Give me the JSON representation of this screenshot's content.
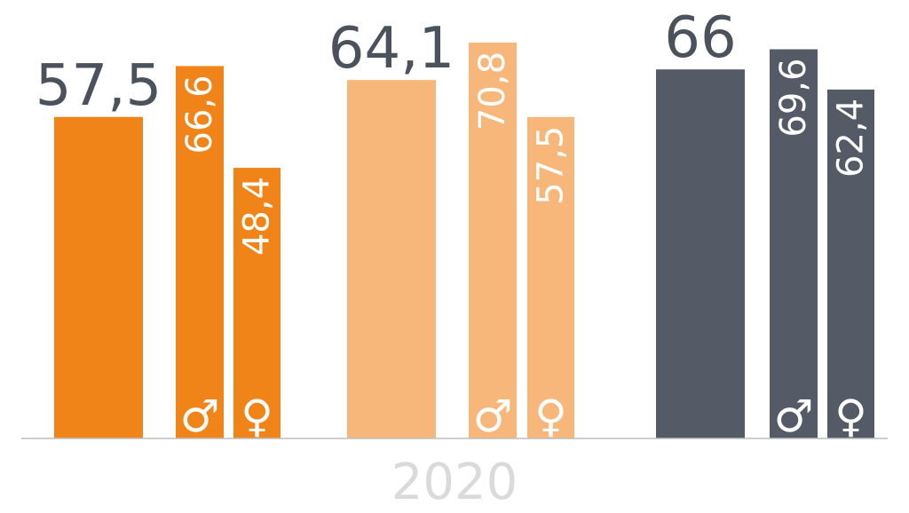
{
  "chart_data": {
    "type": "bar",
    "x_label": "2020",
    "ylim": [
      0,
      80
    ],
    "groups": [
      {
        "total": {
          "value": 57.5,
          "label": "57,5"
        },
        "male": {
          "value": 66.6,
          "label": "66,6"
        },
        "female": {
          "value": 48.4,
          "label": "48,4"
        },
        "color": "#F08419"
      },
      {
        "total": {
          "value": 64.1,
          "label": "64,1"
        },
        "male": {
          "value": 70.8,
          "label": "70,8"
        },
        "female": {
          "value": 57.5,
          "label": "57,5"
        },
        "color": "#F8B77A"
      },
      {
        "total": {
          "value": 66,
          "label": "66"
        },
        "male": {
          "value": 69.6,
          "label": "69,6"
        },
        "female": {
          "value": 62.4,
          "label": "62,4"
        },
        "color": "#545B66"
      }
    ],
    "male_symbol": "♂",
    "female_symbol": "♀",
    "value_label_color": "#4B525C",
    "inner_label_color": "#FFFFFF",
    "axis_color": "#BDBDBD",
    "x_label_color": "#DADADA",
    "grid": false,
    "legend": "none"
  }
}
